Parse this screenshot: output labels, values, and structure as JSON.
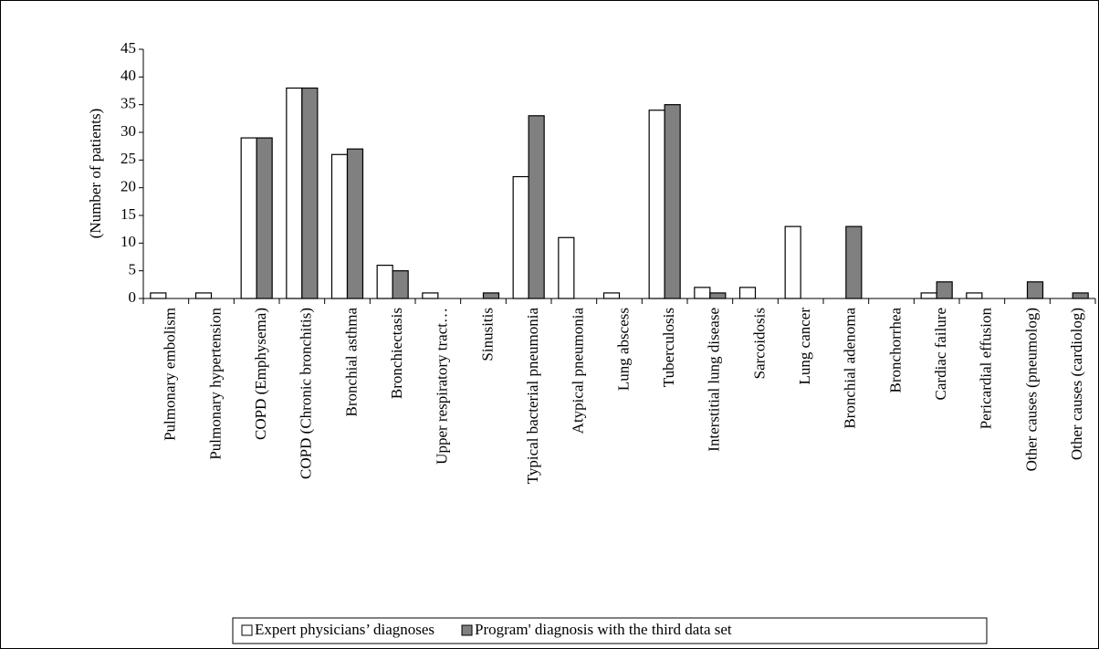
{
  "chart_data": {
    "type": "bar",
    "y_label": "(Number of patients)",
    "categories": [
      "Pulmonary embolism",
      "Pulmonary hypertension",
      "COPD (Emphysema)",
      "COPD (Chronic bronchitis)",
      "Bronchial asthma",
      "Bronchiectasis",
      "Upper respiratory tract…",
      "Sinusitis",
      "Typical bacterial pneumonia",
      "Atypical pneumonia",
      "Lung abscess",
      "Tuberculosis",
      "Interstitial lung disease",
      "Sarcoidosis",
      "Lung cancer",
      "Bronchial adenoma",
      "Bronchorrhea",
      "Cardiac failure",
      "Pericardial effusion",
      "Other causes (pneumolog)",
      "Other causes (cardiolog)"
    ],
    "series": [
      {
        "name": "Expert physicians’ diagnoses",
        "color": "#ffffff",
        "values": [
          1,
          1,
          29,
          38,
          26,
          6,
          1,
          0,
          22,
          11,
          1,
          34,
          2,
          2,
          13,
          0,
          0,
          1,
          1,
          0,
          0
        ]
      },
      {
        "name": "Program' diagnosis with the third data set",
        "color": "#808080",
        "values": [
          0,
          0,
          29,
          38,
          27,
          5,
          0,
          1,
          33,
          0,
          0,
          35,
          1,
          0,
          0,
          13,
          0,
          3,
          0,
          3,
          1
        ]
      }
    ],
    "ylim": [
      0,
      45
    ],
    "yticks": [
      0,
      5,
      10,
      15,
      20,
      25,
      30,
      35,
      40,
      45
    ],
    "legend": "bottom"
  }
}
